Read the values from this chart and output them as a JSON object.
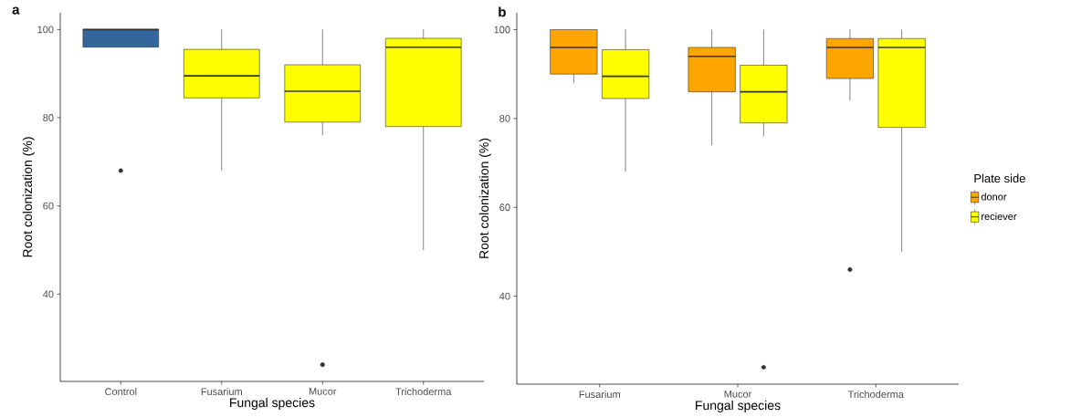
{
  "chart_data": [
    {
      "type": "box",
      "title": "a",
      "xlabel": "Fungal species",
      "ylabel": "Root colonization (%)",
      "categories": [
        "Control",
        "Fusarium",
        "Mucor",
        "Trichoderma"
      ],
      "colors": [
        "#33669a",
        "#ffff00",
        "#ffff00",
        "#ffff00"
      ],
      "boxes": [
        {
          "low": 96,
          "q1": 96,
          "median": 100,
          "q3": 100,
          "high": 100,
          "outliers": [
            68
          ]
        },
        {
          "low": 68,
          "q1": 84.5,
          "median": 89.5,
          "q3": 95.5,
          "high": 100
        },
        {
          "low": 76,
          "q1": 79,
          "median": 86,
          "q3": 92,
          "high": 100,
          "outliers": [
            24
          ]
        },
        {
          "low": 50,
          "q1": 78,
          "median": 96,
          "q3": 98,
          "high": 100
        }
      ],
      "ylim": [
        20.2,
        103.8
      ],
      "yticks": [
        40,
        60,
        80,
        100
      ],
      "grid": false,
      "legend": false
    },
    {
      "type": "box",
      "title": "b",
      "xlabel": "Fungal species",
      "ylabel": "Root colonization (%)",
      "categories": [
        "Fusarium",
        "Mucor",
        "Trichoderma"
      ],
      "legend_title": "Plate side",
      "legend": "right",
      "series": [
        {
          "name": "donor",
          "color": "#ffa500",
          "boxes": [
            {
              "low": 88,
              "q1": 90,
              "median": 96,
              "q3": 100,
              "high": 100
            },
            {
              "low": 74,
              "q1": 86,
              "median": 94,
              "q3": 96,
              "high": 100
            },
            {
              "low": 84,
              "q1": 89,
              "median": 96,
              "q3": 98,
              "high": 100,
              "outliers": [
                46
              ]
            }
          ]
        },
        {
          "name": "reciever",
          "color": "#ffff00",
          "boxes": [
            {
              "low": 68,
              "q1": 84.5,
              "median": 89.5,
              "q3": 95.5,
              "high": 100
            },
            {
              "low": 76,
              "q1": 79,
              "median": 86,
              "q3": 92,
              "high": 100,
              "outliers": [
                24
              ]
            },
            {
              "low": 50,
              "q1": 78,
              "median": 96,
              "q3": 98,
              "high": 100
            }
          ]
        }
      ],
      "ylim": [
        20.2,
        103.8
      ],
      "yticks": [
        40,
        60,
        80,
        100
      ],
      "grid": false
    }
  ]
}
